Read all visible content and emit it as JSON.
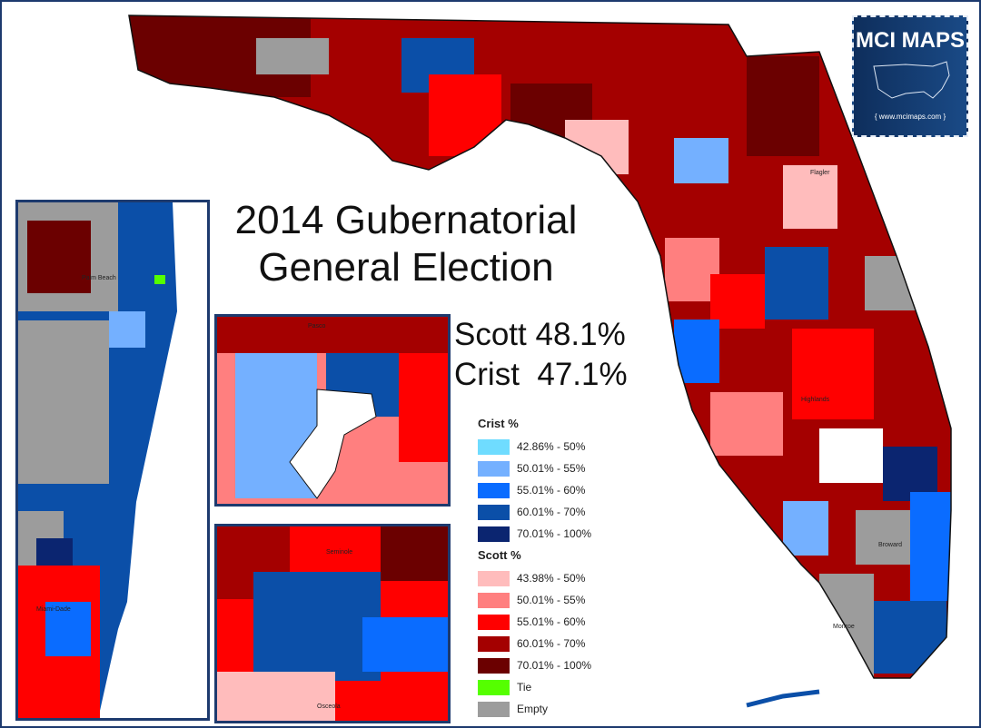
{
  "title": {
    "line1": "2014 Gubernatorial",
    "line2": "General Election"
  },
  "results": {
    "scott": "Scott 48.1%",
    "crist": "Crist  47.1%"
  },
  "logo": {
    "name": "MCI MAPS",
    "url": "{ www.mcimaps.com }",
    "background": "#123a6e"
  },
  "legend": {
    "crist_title": "Crist %",
    "crist": [
      {
        "label": "42.86% - 50%",
        "color": "#6fdcff"
      },
      {
        "label": "50.01% - 55%",
        "color": "#74b0ff"
      },
      {
        "label": "55.01% - 60%",
        "color": "#0a6cff"
      },
      {
        "label": "60.01% - 70%",
        "color": "#0b4fa8"
      },
      {
        "label": "70.01% - 100%",
        "color": "#0b2570"
      }
    ],
    "scott_title": "Scott %",
    "scott": [
      {
        "label": "43.98% - 50%",
        "color": "#ffbcbc"
      },
      {
        "label": "50.01% - 55%",
        "color": "#ff7f7f"
      },
      {
        "label": "55.01% - 60%",
        "color": "#ff0000"
      },
      {
        "label": "60.01% - 70%",
        "color": "#a40000"
      },
      {
        "label": "70.01% - 100%",
        "color": "#6b0000"
      }
    ],
    "other": [
      {
        "label": "Tie",
        "color": "#55ff00"
      },
      {
        "label": "Empty",
        "color": "#9c9c9c"
      }
    ]
  },
  "map_labels": {
    "pasco": "Pasco",
    "seminole": "Seminole",
    "osceola": "Osceola",
    "broward": "Broward",
    "monroe": "Monroe",
    "miami_dade": "Miami-Dade",
    "palm_beach": "Palm Beach",
    "flagler": "Flagler",
    "highlands": "Highlands"
  }
}
